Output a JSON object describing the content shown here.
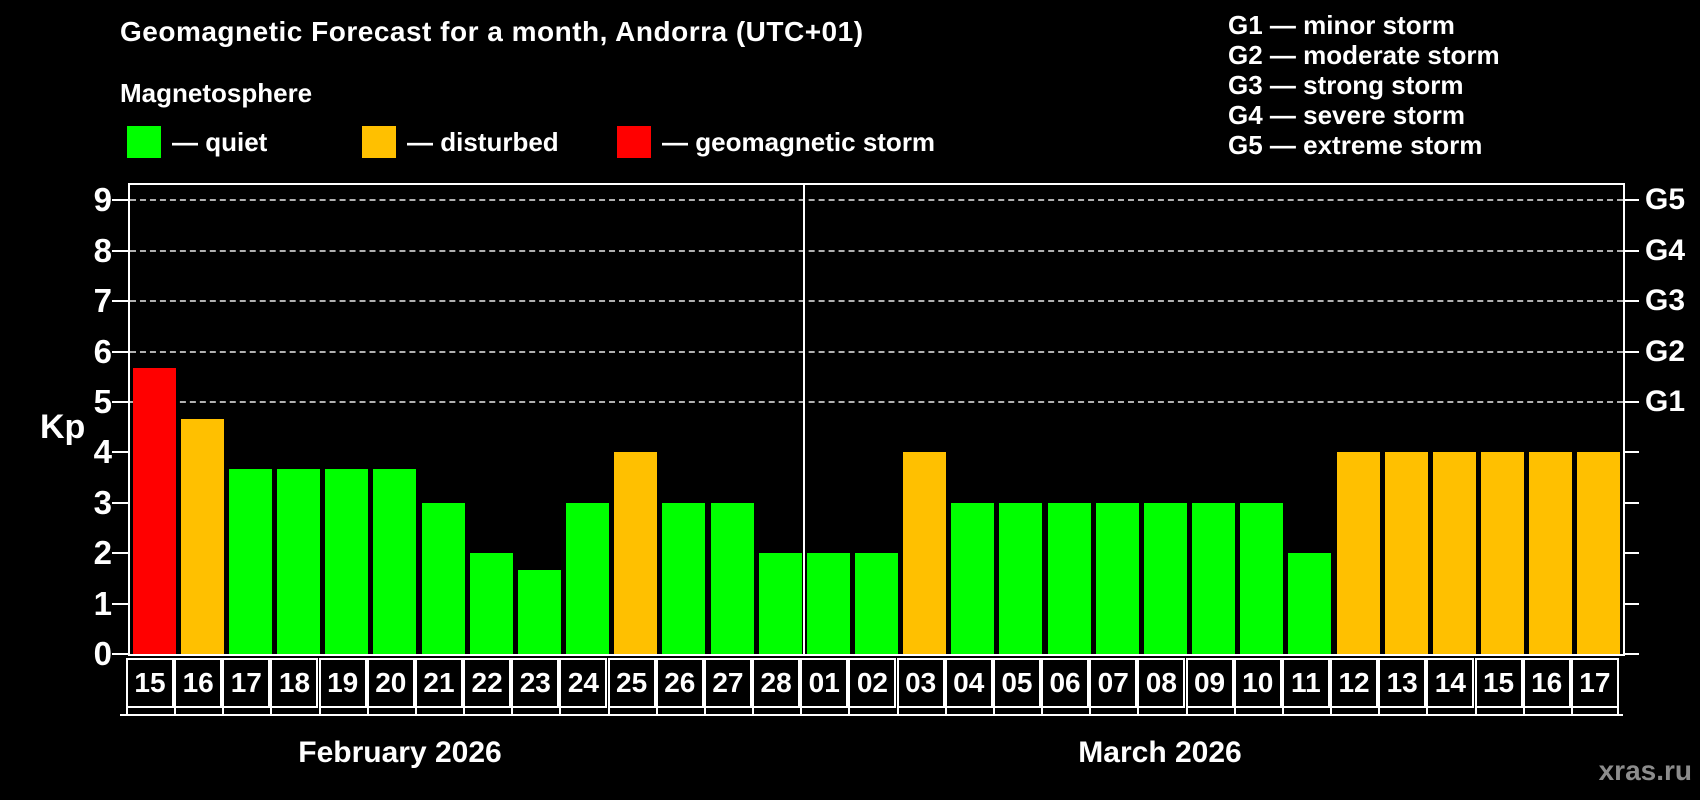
{
  "title": "Geomagnetic Forecast for a month, Andorra (UTC+01)",
  "subtitle": "Magnetosphere",
  "legend": {
    "items": [
      {
        "key": "quiet",
        "label": "— quiet",
        "color": "#00ff00"
      },
      {
        "key": "disturbed",
        "label": "— disturbed",
        "color": "#ffc000"
      },
      {
        "key": "storm",
        "label": "— geomagnetic storm",
        "color": "#ff0000"
      }
    ]
  },
  "g_scale_legend": {
    "items": [
      "G1 — minor storm",
      "G2 — moderate storm",
      "G3 — strong storm",
      "G4 — severe storm",
      "G5 — extreme storm"
    ]
  },
  "watermark": "xras.ru",
  "chart_data": {
    "type": "bar",
    "title": "Geomagnetic Forecast for a month, Andorra (UTC+01)",
    "ylabel": "Kp",
    "ylim": [
      0,
      9.4
    ],
    "y_ticks": [
      0,
      1,
      2,
      3,
      4,
      5,
      6,
      7,
      8,
      9
    ],
    "gridlines_at": [
      5,
      6,
      7,
      8,
      9
    ],
    "grid": "dashed horizontal at G-storm levels only",
    "legend_position": "top",
    "right_axis_labels": [
      {
        "text": "G1",
        "kp": 5
      },
      {
        "text": "G2",
        "kp": 6
      },
      {
        "text": "G3",
        "kp": 7
      },
      {
        "text": "G4",
        "kp": 8
      },
      {
        "text": "G5",
        "kp": 9
      }
    ],
    "status_colors": {
      "quiet": "#00ff00",
      "disturbed": "#ffc000",
      "storm": "#ff0000"
    },
    "months": [
      {
        "label": "February 2026",
        "days": 14,
        "label_center_x": 400
      },
      {
        "label": "March 2026",
        "days": 17,
        "label_center_x": 1160
      }
    ],
    "points": [
      {
        "day": "15",
        "kp": 5.67,
        "status": "storm"
      },
      {
        "day": "16",
        "kp": 4.67,
        "status": "disturbed"
      },
      {
        "day": "17",
        "kp": 3.67,
        "status": "quiet"
      },
      {
        "day": "18",
        "kp": 3.67,
        "status": "quiet"
      },
      {
        "day": "19",
        "kp": 3.67,
        "status": "quiet"
      },
      {
        "day": "20",
        "kp": 3.67,
        "status": "quiet"
      },
      {
        "day": "21",
        "kp": 3.0,
        "status": "quiet"
      },
      {
        "day": "22",
        "kp": 2.0,
        "status": "quiet"
      },
      {
        "day": "23",
        "kp": 1.67,
        "status": "quiet"
      },
      {
        "day": "24",
        "kp": 3.0,
        "status": "quiet"
      },
      {
        "day": "25",
        "kp": 4.0,
        "status": "disturbed"
      },
      {
        "day": "26",
        "kp": 3.0,
        "status": "quiet"
      },
      {
        "day": "27",
        "kp": 3.0,
        "status": "quiet"
      },
      {
        "day": "28",
        "kp": 2.0,
        "status": "quiet"
      },
      {
        "day": "01",
        "kp": 2.0,
        "status": "quiet"
      },
      {
        "day": "02",
        "kp": 2.0,
        "status": "quiet"
      },
      {
        "day": "03",
        "kp": 4.0,
        "status": "disturbed"
      },
      {
        "day": "04",
        "kp": 3.0,
        "status": "quiet"
      },
      {
        "day": "05",
        "kp": 3.0,
        "status": "quiet"
      },
      {
        "day": "06",
        "kp": 3.0,
        "status": "quiet"
      },
      {
        "day": "07",
        "kp": 3.0,
        "status": "quiet"
      },
      {
        "day": "08",
        "kp": 3.0,
        "status": "quiet"
      },
      {
        "day": "09",
        "kp": 3.0,
        "status": "quiet"
      },
      {
        "day": "10",
        "kp": 3.0,
        "status": "quiet"
      },
      {
        "day": "11",
        "kp": 2.0,
        "status": "quiet"
      },
      {
        "day": "12",
        "kp": 4.0,
        "status": "disturbed"
      },
      {
        "day": "13",
        "kp": 4.0,
        "status": "disturbed"
      },
      {
        "day": "14",
        "kp": 4.0,
        "status": "disturbed"
      },
      {
        "day": "15",
        "kp": 4.0,
        "status": "disturbed"
      },
      {
        "day": "16",
        "kp": 4.0,
        "status": "disturbed"
      },
      {
        "day": "17",
        "kp": 4.0,
        "status": "disturbed"
      }
    ]
  }
}
